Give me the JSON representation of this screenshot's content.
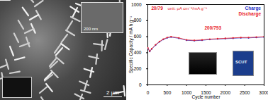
{
  "chart_data": {
    "type": "line",
    "xlabel": "Cycle number",
    "ylabel": "Specific Capacity / mA h g⁻¹",
    "xlim": [
      0,
      3000
    ],
    "xticks": [
      0,
      500,
      1000,
      1500,
      2000,
      2500,
      3000
    ],
    "ylim": [
      0,
      1000
    ],
    "yticks": [
      0,
      200,
      400,
      600,
      800,
      1000
    ],
    "legend": "top-right",
    "marker": "circle",
    "annotations": [
      {
        "text": "20/79",
        "color": "#e8202a"
      },
      {
        "text": "unit: μA cm⁻²/mA g⁻¹",
        "color": "#e8202a"
      },
      {
        "text": "200/793",
        "color": "#e8202a"
      }
    ],
    "x": [
      1,
      50,
      100,
      200,
      300,
      400,
      500,
      600,
      800,
      1000,
      1200,
      1400,
      1600,
      1800,
      2000,
      2200,
      2400,
      2600,
      2800,
      3000
    ],
    "series": [
      {
        "name": "Charge",
        "color": "#2a35c8",
        "values": [
          455,
          415,
          445,
          495,
          535,
          565,
          585,
          595,
          580,
          555,
          550,
          555,
          565,
          570,
          575,
          580,
          585,
          585,
          590,
          595
        ]
      },
      {
        "name": "Discharge",
        "color": "#e8202a",
        "values": [
          460,
          420,
          450,
          500,
          540,
          570,
          590,
          600,
          585,
          560,
          555,
          560,
          570,
          575,
          580,
          585,
          590,
          590,
          595,
          600
        ]
      }
    ]
  },
  "image_texts": {
    "scale_bar": "2 μm",
    "inset_scale_bar": "200 nm",
    "inset_logo": "SCUT"
  }
}
